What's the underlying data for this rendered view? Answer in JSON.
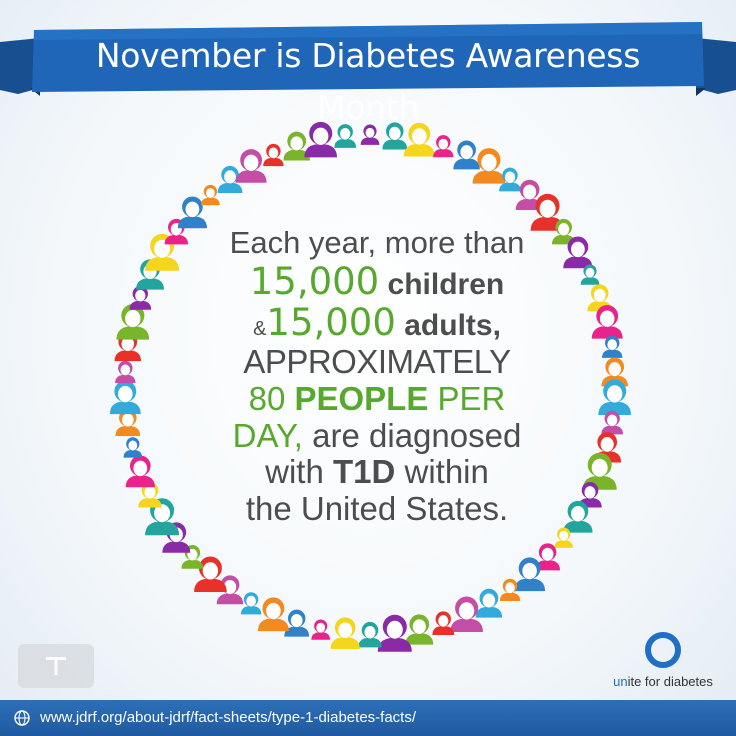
{
  "banner": {
    "title": "November is Diabetes Awareness Month",
    "color": "#1f66b8"
  },
  "message": {
    "line1": "Each year, more than",
    "children_count": "15,000",
    "children_label": "children",
    "amp": "&",
    "adults_count": "15,000",
    "adults_label": "adults,",
    "line4": "APPROXIMATELY",
    "per_day_number": "80",
    "people_word": "PEOPLE",
    "per_word": "PER",
    "day_word": "DAY,",
    "line6_rest": "are diagnosed",
    "with_word": "with",
    "t1d_word": "T1D",
    "within_word": "within",
    "line8": "the United States."
  },
  "colors": {
    "green": "#57a92d",
    "text": "#4d4d4d",
    "blue": "#1f6fc5"
  },
  "logo": {
    "u": "un",
    "rest": "ite for diabetes",
    "icon": "blue-circle-icon"
  },
  "footer": {
    "url": "www.jdrf.org/about-jdrf/fact-sheets/type-1-diabetes-facts/",
    "icon": "globe-icon"
  },
  "people_ring": {
    "count": 62,
    "palette": [
      "#8a2aa6",
      "#e9238a",
      "#33aadc",
      "#79b42b",
      "#f5d61c",
      "#f28a1f",
      "#e8312b",
      "#21a59c",
      "#2f82c9",
      "#c44da6"
    ]
  }
}
